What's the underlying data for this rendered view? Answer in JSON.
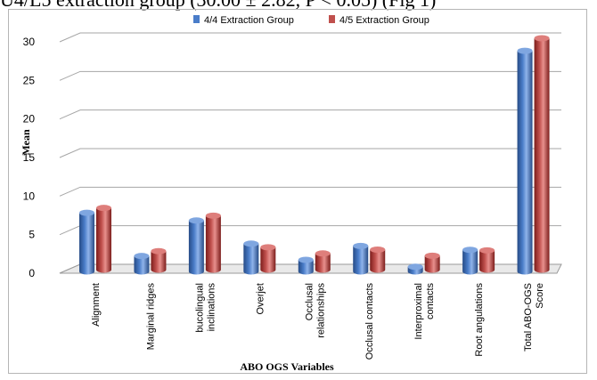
{
  "header_text": "U4/L5 extraction group (30.00 ± 2.82, P < 0.05) (Fig 1)",
  "chart_data": {
    "type": "bar",
    "title": "",
    "xlabel": "ABO OGS Variables",
    "ylabel": "Mean",
    "ylim": [
      0,
      30
    ],
    "yticks": [
      "0",
      "5",
      "10",
      "15",
      "20",
      "25",
      "30"
    ],
    "grid": true,
    "legend_position": "top",
    "categories": [
      "Alignment",
      "Marginal ridges",
      "bucolingual\ninclinations",
      "Overjet",
      "Occlusal\nrelationships",
      "Occlusal contacts",
      "Interproximal\ncontacts",
      "Root angulations",
      "Total ABO-OGS\nScore"
    ],
    "series": [
      {
        "name": "4/4 Extraction Group",
        "color": "#4a7dc9",
        "values": [
          7.6,
          2.0,
          6.6,
          3.6,
          1.5,
          3.3,
          0.6,
          2.8,
          28.6
        ]
      },
      {
        "name": "4/5 Extraction Group",
        "color": "#c0504d",
        "values": [
          8.0,
          2.4,
          7.0,
          2.9,
          2.1,
          2.6,
          1.8,
          2.5,
          30.0
        ]
      }
    ]
  }
}
